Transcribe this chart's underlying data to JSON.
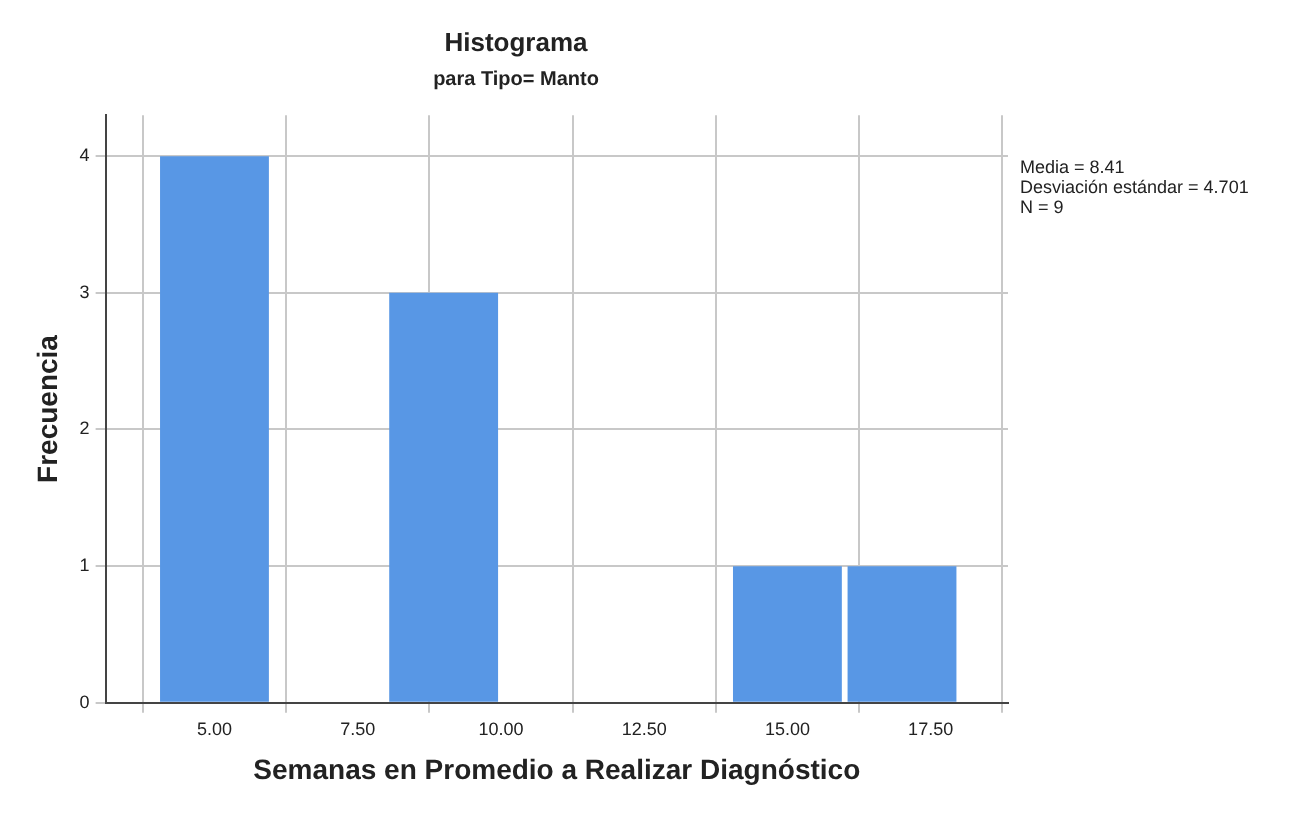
{
  "chart_data": {
    "type": "histogram",
    "title": "Histograma",
    "subtitle": "para Tipo= Manto",
    "xlabel": "Semanas en Promedio a Realizar Diagnóstico",
    "ylabel": "Frecuencia",
    "bins": [
      4,
      6,
      8,
      10,
      12,
      14,
      16,
      18
    ],
    "values": [
      4,
      0,
      3,
      0,
      0,
      1,
      1
    ],
    "color": "#5897e5",
    "xlim": [
      3.1,
      18.85
    ],
    "xticks": [
      {
        "value": 5,
        "label": "5.00"
      },
      {
        "value": 7.5,
        "label": "7.50"
      },
      {
        "value": 10,
        "label": "10.00"
      },
      {
        "value": 12.5,
        "label": "12.50"
      },
      {
        "value": 15,
        "label": "15.00"
      },
      {
        "value": 17.5,
        "label": "17.50"
      }
    ],
    "ylim": [
      0,
      4.3
    ],
    "yticks": [
      0,
      1,
      2,
      3,
      4
    ],
    "grid": true,
    "legend": false,
    "annotations": [
      "Media = 8.41",
      "Desviación estándar = 4.701",
      "N = 9"
    ]
  }
}
